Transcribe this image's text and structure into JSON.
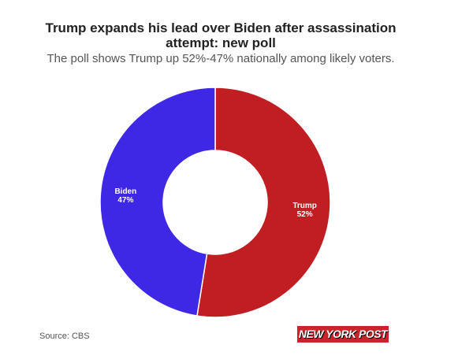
{
  "chart_data": {
    "type": "pie",
    "style": "donut",
    "title": "Trump expands his lead over Biden after assassination attempt: new poll",
    "subtitle": "The poll shows Trump up 52%-47% nationally among likely voters.",
    "slices": [
      {
        "label": "Trump",
        "value": 52,
        "value_label": "52%",
        "color": "#C01E22"
      },
      {
        "label": "Biden",
        "value": 47,
        "value_label": "47%",
        "color": "#3F27E6"
      }
    ],
    "start": "top",
    "direction": "clockwise"
  },
  "source": "Source: CBS",
  "logo": "NEW YORK POST"
}
